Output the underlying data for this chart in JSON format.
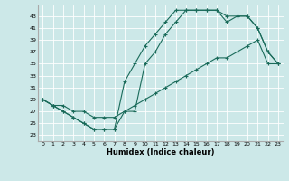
{
  "xlabel": "Humidex (Indice chaleur)",
  "bg_color": "#cce8e8",
  "grid_color": "#ffffff",
  "line_color": "#1a6b5a",
  "xlim": [
    -0.5,
    23.5
  ],
  "ylim": [
    22.0,
    44.8
  ],
  "xticks": [
    0,
    1,
    2,
    3,
    4,
    5,
    6,
    7,
    8,
    9,
    10,
    11,
    12,
    13,
    14,
    15,
    16,
    17,
    18,
    19,
    20,
    21,
    22,
    23
  ],
  "yticks": [
    23,
    25,
    27,
    29,
    31,
    33,
    35,
    37,
    39,
    41,
    43
  ],
  "line1_x": [
    0,
    1,
    2,
    3,
    4,
    5,
    6,
    7,
    8,
    9,
    10,
    11,
    12,
    13,
    14,
    15,
    16,
    17,
    18,
    19,
    20,
    21,
    22,
    23
  ],
  "line1_y": [
    29,
    28,
    27,
    26,
    25,
    24,
    24,
    24,
    32,
    35,
    38,
    40,
    42,
    44,
    44,
    44,
    44,
    44,
    43,
    43,
    43,
    41,
    37,
    35
  ],
  "line2_x": [
    0,
    1,
    2,
    3,
    4,
    5,
    6,
    7,
    8,
    9,
    10,
    11,
    12,
    13,
    14,
    15,
    16,
    17,
    18,
    19,
    20,
    21,
    22,
    23
  ],
  "line2_y": [
    29,
    28,
    27,
    26,
    25,
    24,
    24,
    24,
    27,
    27,
    35,
    37,
    40,
    42,
    44,
    44,
    44,
    44,
    42,
    43,
    43,
    41,
    37,
    35
  ],
  "line3_x": [
    0,
    1,
    2,
    3,
    4,
    5,
    6,
    7,
    8,
    9,
    10,
    11,
    12,
    13,
    14,
    15,
    16,
    17,
    18,
    19,
    20,
    21,
    22,
    23
  ],
  "line3_y": [
    29,
    28,
    28,
    27,
    27,
    26,
    26,
    26,
    27,
    28,
    29,
    30,
    31,
    32,
    33,
    34,
    35,
    36,
    36,
    37,
    38,
    39,
    35,
    35
  ]
}
